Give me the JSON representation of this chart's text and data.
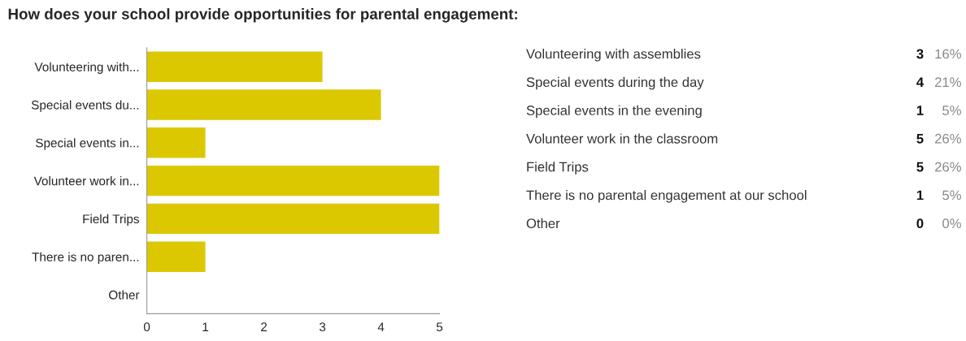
{
  "chart_data": [
    {
      "type": "bar",
      "orientation": "horizontal",
      "title": "How does your school provide opportunities for parental engagement:",
      "categories": [
        "Volunteering with...",
        "Special events du...",
        "Special events in...",
        "Volunteer work in...",
        "Field Trips",
        "There is no paren...",
        "Other"
      ],
      "values": [
        3,
        4,
        1,
        5,
        5,
        1,
        0
      ],
      "color": "#dcc800",
      "xlim": [
        0,
        5
      ],
      "xticks": [
        0,
        1,
        2,
        3,
        4,
        5
      ],
      "grid": false
    },
    {
      "type": "other",
      "annotations": [
        "Volunteering with assemblies",
        "3",
        "16%",
        "Special events during the day",
        "4",
        "21%",
        "Special events in the evening",
        "1",
        "5%",
        "Volunteer work in the classroom",
        "5",
        "26%",
        "Field Trips",
        "5",
        "26%",
        "There is no parental engagement at our school",
        "1",
        "5%",
        "Other",
        "0",
        "0%"
      ]
    }
  ]
}
